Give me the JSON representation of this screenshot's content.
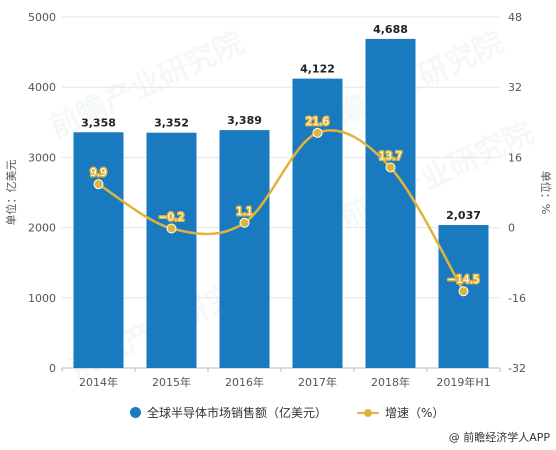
{
  "chart_data": {
    "type": "bar",
    "categories": [
      "2014年",
      "2015年",
      "2016年",
      "2017年",
      "2018年",
      "2019年H1"
    ],
    "series": [
      {
        "name": "全球半导体市场销售额（亿美元）",
        "type": "bar",
        "axis": "left",
        "values": [
          3358,
          3352,
          3389,
          4122,
          4688,
          2037
        ],
        "labels": [
          "3,358",
          "3,352",
          "3,389",
          "4,122",
          "4,688",
          "2,037"
        ],
        "color": "#1a7abf"
      },
      {
        "name": "增速（%）",
        "type": "line",
        "axis": "right",
        "values": [
          9.9,
          -0.2,
          1.1,
          21.6,
          13.7,
          -14.5
        ],
        "labels": [
          "9.9",
          "−0.2",
          "1.1",
          "21.6",
          "13.7",
          "−14.5"
        ],
        "color": "#e0b43c"
      }
    ],
    "ylabel": "单位：亿美元",
    "y2label": "单位：%",
    "ylim": [
      0,
      5000
    ],
    "yticks": [
      0,
      1000,
      2000,
      3000,
      4000,
      5000
    ],
    "y2lim": [
      -32,
      48
    ],
    "y2ticks": [
      -32,
      -16,
      0,
      16,
      32,
      48
    ],
    "grid": true,
    "legend_position": "bottom"
  },
  "source": "@ 前瞻经济学人APP",
  "watermark": "前瞻产业研究院"
}
